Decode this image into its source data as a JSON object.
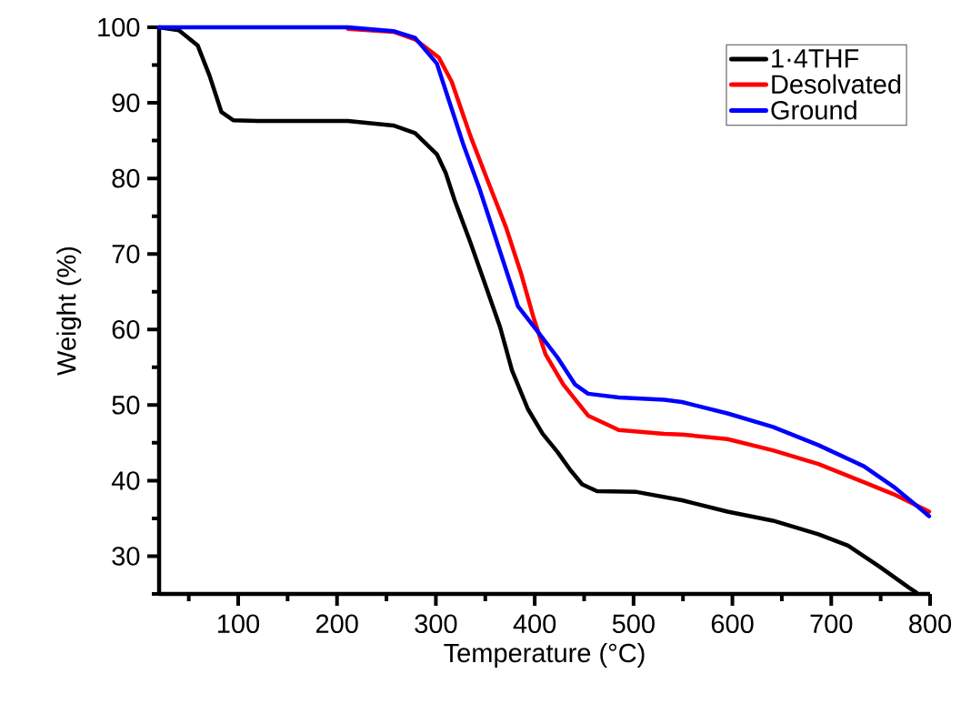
{
  "chart_data": {
    "type": "line",
    "xlabel": "Temperature (°C)",
    "ylabel": "Weight (%)",
    "xlim": [
      20,
      800
    ],
    "ylim": [
      25,
      100
    ],
    "xticks": [
      {
        "value": 50,
        "label": null
      },
      100,
      {
        "value": 150,
        "label": null
      },
      200,
      {
        "value": 250,
        "label": null
      },
      300,
      {
        "value": 350,
        "label": null
      },
      400,
      {
        "value": 450,
        "label": null
      },
      500,
      {
        "value": 550,
        "label": null
      },
      600,
      {
        "value": 650,
        "label": null
      },
      700,
      {
        "value": 750,
        "label": null
      },
      800
    ],
    "yticks": [
      {
        "value": 25,
        "label": null
      },
      30,
      {
        "value": 35,
        "label": null
      },
      40,
      {
        "value": 45,
        "label": null
      },
      50,
      {
        "value": 55,
        "label": null
      },
      60,
      {
        "value": 65,
        "label": null
      },
      70,
      {
        "value": 75,
        "label": null
      },
      80,
      {
        "value": 85,
        "label": null
      },
      90,
      {
        "value": 95,
        "label": null
      },
      100
    ],
    "legend": "top right",
    "grid": false,
    "marker": "none",
    "line_style": "solid",
    "series": [
      {
        "name": "1·4THF",
        "color": "#000000",
        "x": [
          20,
          40,
          59,
          71,
          83,
          95,
          120,
          160,
          211,
          257,
          279,
          301,
          310,
          319,
          335,
          349,
          365,
          377,
          393,
          408,
          423,
          436,
          448,
          463,
          503,
          549,
          595,
          641,
          687,
          717,
          749,
          779,
          786
        ],
        "values": [
          100,
          99.6,
          97.6,
          93.6,
          88.8,
          87.7,
          87.6,
          87.6,
          87.6,
          87.0,
          86.0,
          83.2,
          80.7,
          77.1,
          71.5,
          66.3,
          60.3,
          54.6,
          49.5,
          46.2,
          43.8,
          41.4,
          39.5,
          38.6,
          38.5,
          37.4,
          35.9,
          34.7,
          32.9,
          31.4,
          28.6,
          25.8,
          25.2
        ]
      },
      {
        "name": "Desolvated",
        "color": "#ff0000",
        "x": [
          211,
          257,
          279,
          303,
          316,
          335,
          353,
          371,
          386,
          399,
          411,
          429,
          454,
          485,
          531,
          549,
          595,
          641,
          687,
          733,
          763,
          799
        ],
        "values": [
          99.8,
          99.4,
          98.4,
          96.0,
          92.8,
          85.6,
          79.5,
          73.5,
          67.5,
          61.5,
          56.7,
          52.7,
          48.6,
          46.7,
          46.2,
          46.1,
          45.5,
          44.0,
          42.2,
          39.8,
          38.2,
          35.9
        ]
      },
      {
        "name": "Ground",
        "color": "#0000ff",
        "x": [
          20,
          120,
          211,
          257,
          279,
          301,
          313,
          328,
          344,
          362,
          383,
          402,
          423,
          441,
          454,
          485,
          531,
          549,
          595,
          641,
          687,
          733,
          763,
          799
        ],
        "values": [
          100,
          100,
          100,
          99.5,
          98.6,
          95.2,
          90.4,
          84.4,
          78.7,
          71.5,
          63.1,
          59.9,
          56.3,
          52.7,
          51.5,
          51.0,
          50.7,
          50.4,
          48.9,
          47.1,
          44.7,
          41.9,
          39.2,
          35.3
        ]
      }
    ]
  }
}
